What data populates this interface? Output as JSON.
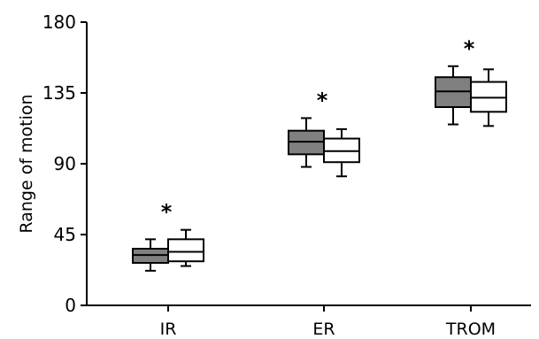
{
  "chart_data": {
    "type": "box",
    "ylabel": "Range of motion",
    "ylim": [
      0,
      180
    ],
    "yticks": [
      "0",
      "45",
      "90",
      "135",
      "180"
    ],
    "categories": [
      "IR",
      "ER",
      "TROM"
    ],
    "series": [
      {
        "fill": "#808080",
        "boxes": [
          {
            "min": 22,
            "q1": 27,
            "median": 32,
            "q3": 36,
            "max": 42
          },
          {
            "min": 88,
            "q1": 96,
            "median": 104,
            "q3": 111,
            "max": 119
          },
          {
            "min": 115,
            "q1": 126,
            "median": 136,
            "q3": 145,
            "max": 152
          }
        ]
      },
      {
        "fill": "#ffffff",
        "boxes": [
          {
            "min": 25,
            "q1": 28,
            "median": 34,
            "q3": 42,
            "max": 48
          },
          {
            "min": 82,
            "q1": 91,
            "median": 98,
            "q3": 106,
            "max": 112
          },
          {
            "min": 114,
            "q1": 123,
            "median": 132,
            "q3": 142,
            "max": 150
          }
        ]
      }
    ],
    "annotations": [
      "*",
      "*",
      "*"
    ]
  }
}
